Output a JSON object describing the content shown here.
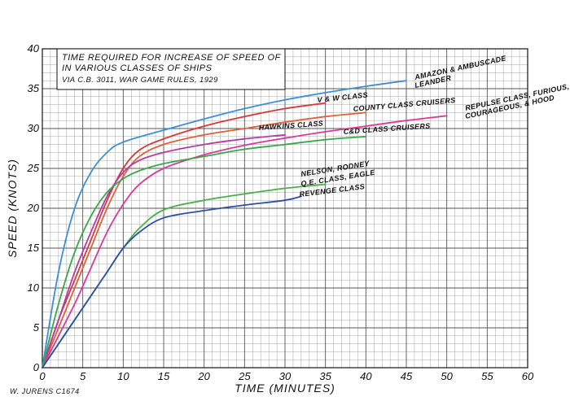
{
  "chart_data": {
    "type": "line",
    "title_lines": [
      "TIME REQUIRED FOR INCREASE OF SPEED OF",
      "IN VARIOUS CLASSES OF SHIPS"
    ],
    "subtitle": "VIA C.B. 3011,  WAR GAME RULES, 1929",
    "xlabel": "TIME (MINUTES)",
    "ylabel": "SPEED (KNOTS)",
    "xlim": [
      0,
      60
    ],
    "ylim": [
      0,
      40
    ],
    "x_ticks": [
      0,
      5,
      10,
      15,
      20,
      25,
      30,
      35,
      40,
      45,
      50,
      55,
      60
    ],
    "y_ticks": [
      0,
      5,
      10,
      15,
      20,
      25,
      30,
      35,
      40
    ],
    "grid": true,
    "credit": "W. JURENS  C1674",
    "series": [
      {
        "labels": [
          "AMAZON & AMBUSCADE",
          "LEANDER"
        ],
        "color": "#3a8fd8",
        "points": [
          [
            0,
            0
          ],
          [
            2,
            12
          ],
          [
            4,
            20
          ],
          [
            6,
            24.5
          ],
          [
            8,
            27
          ],
          [
            10,
            28.3
          ],
          [
            15,
            29.8
          ],
          [
            20,
            31.2
          ],
          [
            25,
            32.5
          ],
          [
            30,
            33.6
          ],
          [
            35,
            34.5
          ],
          [
            40,
            35.3
          ],
          [
            45,
            36
          ]
        ]
      },
      {
        "labels": [
          "V & W CLASS"
        ],
        "color": "#d23a3a",
        "points": [
          [
            0,
            0
          ],
          [
            2,
            6
          ],
          [
            4,
            11
          ],
          [
            6,
            16
          ],
          [
            8,
            21
          ],
          [
            10,
            25
          ],
          [
            12,
            27.3
          ],
          [
            15,
            28.7
          ],
          [
            20,
            30.3
          ],
          [
            25,
            31.5
          ],
          [
            30,
            32.5
          ],
          [
            35,
            33.2
          ]
        ]
      },
      {
        "labels": [
          "COUNTY CLASS CRUISERS"
        ],
        "color": "#e0603a",
        "points": [
          [
            0,
            0
          ],
          [
            2,
            5
          ],
          [
            4,
            10
          ],
          [
            6,
            15
          ],
          [
            8,
            20
          ],
          [
            10,
            24
          ],
          [
            12,
            26.5
          ],
          [
            15,
            28
          ],
          [
            20,
            29.2
          ],
          [
            25,
            30
          ],
          [
            30,
            30.8
          ],
          [
            35,
            31.5
          ],
          [
            40,
            32
          ]
        ]
      },
      {
        "labels": [
          "REPULSE CLASS, FURIOUS,",
          "COURAGEOUS, & HOOD"
        ],
        "color": "#d83a9a",
        "points": [
          [
            0,
            0
          ],
          [
            2,
            4
          ],
          [
            4,
            8
          ],
          [
            6,
            12.5
          ],
          [
            8,
            17
          ],
          [
            10,
            20.5
          ],
          [
            12,
            23
          ],
          [
            15,
            25
          ],
          [
            20,
            26.7
          ],
          [
            25,
            27.9
          ],
          [
            30,
            28.8
          ],
          [
            35,
            29.6
          ],
          [
            40,
            30.3
          ],
          [
            45,
            31
          ],
          [
            50,
            31.6
          ]
        ]
      },
      {
        "labels": [
          "HAWKINS CLASS"
        ],
        "color": "#b83aa8",
        "points": [
          [
            0,
            0
          ],
          [
            2,
            6
          ],
          [
            4,
            12
          ],
          [
            6,
            17
          ],
          [
            8,
            21.5
          ],
          [
            10,
            24.5
          ],
          [
            12,
            26
          ],
          [
            15,
            27
          ],
          [
            20,
            28
          ],
          [
            25,
            28.7
          ],
          [
            30,
            29.2
          ]
        ]
      },
      {
        "labels": [
          "C&D CLASS CRUISERS"
        ],
        "color": "#3aa84a",
        "points": [
          [
            0,
            0
          ],
          [
            2,
            8
          ],
          [
            4,
            14.5
          ],
          [
            6,
            19
          ],
          [
            8,
            22
          ],
          [
            10,
            23.7
          ],
          [
            12,
            24.7
          ],
          [
            15,
            25.6
          ],
          [
            20,
            26.5
          ],
          [
            25,
            27.4
          ],
          [
            30,
            28
          ],
          [
            35,
            28.6
          ],
          [
            40,
            29
          ]
        ]
      },
      {
        "labels": [
          "NELSON, RODNEY",
          "Q.E. CLASS, EAGLE"
        ],
        "color": "#48b048",
        "points": [
          [
            0,
            0
          ],
          [
            2,
            3
          ],
          [
            5,
            7.5
          ],
          [
            8,
            12
          ],
          [
            10,
            15
          ],
          [
            12,
            17.5
          ],
          [
            15,
            19.8
          ],
          [
            20,
            21
          ],
          [
            25,
            21.8
          ],
          [
            30,
            22.5
          ],
          [
            35,
            23
          ]
        ]
      },
      {
        "labels": [
          "REVENGE CLASS"
        ],
        "color": "#2d4fa8",
        "points": [
          [
            0,
            0
          ],
          [
            2,
            3
          ],
          [
            5,
            7.5
          ],
          [
            8,
            12
          ],
          [
            10,
            15
          ],
          [
            12,
            17
          ],
          [
            15,
            18.8
          ],
          [
            20,
            19.7
          ],
          [
            25,
            20.4
          ],
          [
            30,
            21
          ],
          [
            32,
            21.5
          ]
        ]
      }
    ]
  }
}
